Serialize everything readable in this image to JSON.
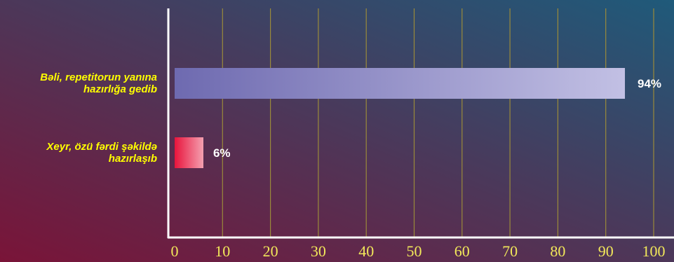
{
  "chart_data": {
    "type": "bar",
    "orientation": "horizontal",
    "categories": [
      [
        "Bəli, repetitorun yanına",
        "hazırlığa gedib"
      ],
      [
        "Xeyr, özü fərdi şəkildə",
        "hazırlaşıb"
      ]
    ],
    "values": [
      94,
      6
    ],
    "value_labels": [
      "94%",
      "6%"
    ],
    "xlim": [
      0,
      100
    ],
    "xticks": [
      0,
      10,
      20,
      30,
      40,
      50,
      60,
      70,
      80,
      90,
      100
    ],
    "grid": true,
    "title": "",
    "xlabel": "",
    "ylabel": ""
  },
  "colors": {
    "background_left": "#7a1438",
    "background_right": "#1f5a7a",
    "label_text": "#ffff00",
    "tick_text": "#f2e85a",
    "grid": "#9a8a3a",
    "axis": "#ffffff",
    "bar_1_start": "#6e6ab0",
    "bar_1_end": "#c2c0e4",
    "bar_2_start": "#e8143c",
    "bar_2_end": "#f4a0b0",
    "value_text": "#ffffff"
  }
}
